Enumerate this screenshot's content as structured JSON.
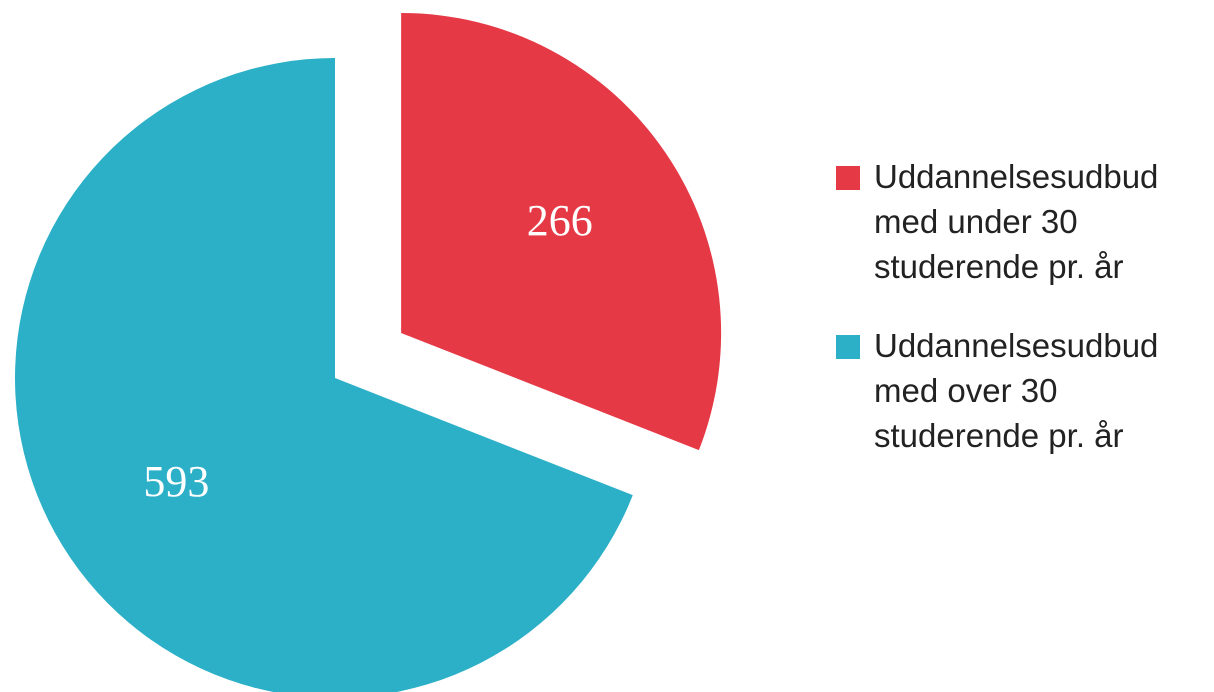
{
  "chart_data": {
    "type": "pie",
    "categories": [
      "Uddannelsesudbud med under 30 studerende pr. år",
      "Uddannelsesudbud med over 30 studerende pr. år"
    ],
    "values": [
      266,
      593
    ],
    "colors": [
      "#e63946",
      "#2bb0c7"
    ],
    "explode": [
      true,
      false
    ],
    "legend": "right"
  }
}
